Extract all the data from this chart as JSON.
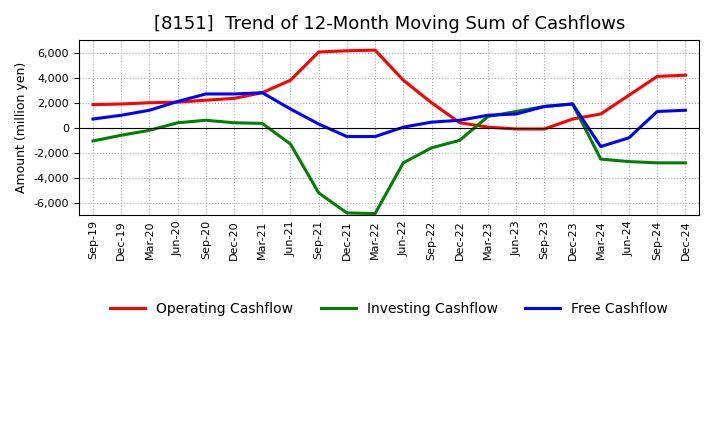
{
  "title": "[8151]  Trend of 12-Month Moving Sum of Cashflows",
  "ylabel": "Amount (million yen)",
  "labels": [
    "Sep-19",
    "Dec-19",
    "Mar-20",
    "Jun-20",
    "Sep-20",
    "Dec-20",
    "Mar-21",
    "Jun-21",
    "Sep-21",
    "Dec-21",
    "Mar-22",
    "Jun-22",
    "Sep-22",
    "Dec-22",
    "Mar-23",
    "Jun-23",
    "Sep-23",
    "Dec-23",
    "Mar-24",
    "Jun-24",
    "Sep-24",
    "Dec-24"
  ],
  "operating": [
    1850,
    1900,
    2000,
    2050,
    2200,
    2350,
    2800,
    3800,
    6050,
    6150,
    6200,
    3800,
    2000,
    400,
    50,
    -100,
    -100,
    700,
    1100,
    2600,
    4100,
    4200
  ],
  "investing": [
    -1050,
    -600,
    -200,
    400,
    600,
    400,
    350,
    -1300,
    -5200,
    -6800,
    -6850,
    -2800,
    -1600,
    -1000,
    900,
    1300,
    1700,
    1900,
    -2500,
    -2700,
    -2800,
    -2800
  ],
  "free": [
    700,
    1000,
    1400,
    2100,
    2700,
    2700,
    2800,
    1500,
    300,
    -700,
    -700,
    50,
    450,
    600,
    1000,
    1100,
    1700,
    1900,
    -1500,
    -800,
    1300,
    1400
  ],
  "operating_color": "#ff0000",
  "investing_color": "#008000",
  "free_color": "#0000ff",
  "bg_color": "#ffffff",
  "plot_bg_color": "#ffffff",
  "ylim": [
    -7000,
    7000
  ],
  "yticks": [
    -6000,
    -4000,
    -2000,
    0,
    2000,
    4000,
    6000
  ],
  "grid_color": "#aaaaaa",
  "line_width": 2.2,
  "title_fontsize": 13,
  "legend_fontsize": 10,
  "tick_fontsize": 8
}
